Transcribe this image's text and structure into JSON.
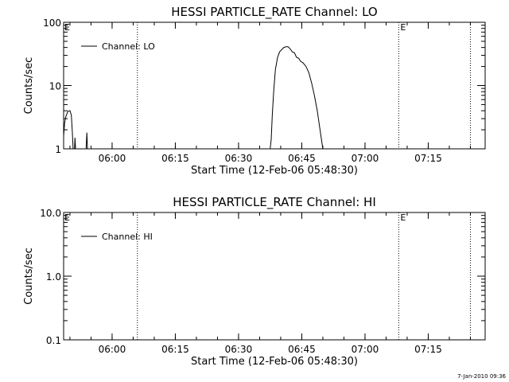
{
  "footer": {
    "timestamp": "7-Jan-2010 09:36"
  },
  "chart_data": [
    {
      "type": "line",
      "title": "HESSI PARTICLE_RATE Channel: LO",
      "xlabel": "Start Time (12-Feb-06 05:48:30)",
      "ylabel": "Counts/sec",
      "yscale": "log",
      "ylim": [
        1,
        100
      ],
      "xlim": [
        "05:48:30",
        "07:28:30"
      ],
      "xticks": [
        "06:00",
        "06:15",
        "06:30",
        "06:45",
        "07:00",
        "07:15"
      ],
      "yticks": [
        "1",
        "10",
        "100"
      ],
      "legend": "top-left",
      "grid": false,
      "markers": [
        {
          "time": "06:06:00",
          "label": ""
        },
        {
          "time": "07:08:00",
          "label": "E"
        },
        {
          "time": "07:25:00",
          "label": ""
        }
      ],
      "corner_label": "E",
      "series": [
        {
          "name": "Channel: LO",
          "segments": [
            [
              [
                "05:48:30",
                1.6
              ],
              [
                "05:48:45",
                2.6
              ],
              [
                "05:49:00",
                3.2
              ],
              [
                "05:49:30",
                3.9
              ],
              [
                "05:50:00",
                4.0
              ],
              [
                "05:50:20",
                3.4
              ],
              [
                "05:50:35",
                1.8
              ],
              [
                "05:50:45",
                1.0
              ]
            ],
            [
              [
                "05:51:05",
                1.0
              ],
              [
                "05:51:12",
                1.5
              ],
              [
                "05:51:20",
                1.0
              ]
            ],
            [
              [
                "05:53:50",
                1.0
              ],
              [
                "05:54:00",
                1.8
              ],
              [
                "05:54:10",
                1.0
              ]
            ],
            [
              [
                "06:37:30",
                1.0
              ],
              [
                "06:37:45",
                1.4
              ],
              [
                "06:38:00",
                3.5
              ],
              [
                "06:38:20",
                8.0
              ],
              [
                "06:38:45",
                18
              ],
              [
                "06:39:15",
                28
              ],
              [
                "06:39:45",
                34
              ],
              [
                "06:40:15",
                37
              ],
              [
                "06:40:45",
                40
              ],
              [
                "06:41:15",
                41
              ],
              [
                "06:41:45",
                41
              ],
              [
                "06:42:15",
                38
              ],
              [
                "06:42:45",
                34
              ],
              [
                "06:43:15",
                33
              ],
              [
                "06:43:45",
                28
              ],
              [
                "06:44:15",
                27
              ],
              [
                "06:44:45",
                24
              ],
              [
                "06:45:15",
                23
              ],
              [
                "06:46:00",
                20
              ],
              [
                "06:46:40",
                16
              ],
              [
                "06:47:20",
                11
              ],
              [
                "06:48:00",
                7
              ],
              [
                "06:48:40",
                4
              ],
              [
                "06:49:20",
                2
              ],
              [
                "06:50:00",
                1.0
              ]
            ]
          ]
        }
      ]
    },
    {
      "type": "line",
      "title": "HESSI PARTICLE_RATE Channel: HI",
      "xlabel": "Start Time (12-Feb-06 05:48:30)",
      "ylabel": "Counts/sec",
      "yscale": "log",
      "ylim": [
        0.1,
        10
      ],
      "xlim": [
        "05:48:30",
        "07:28:30"
      ],
      "xticks": [
        "06:00",
        "06:15",
        "06:30",
        "06:45",
        "07:00",
        "07:15"
      ],
      "yticks": [
        "0.1",
        "1.0",
        "10.0"
      ],
      "legend": "top-left",
      "grid": false,
      "markers": [
        {
          "time": "06:06:00",
          "label": ""
        },
        {
          "time": "07:08:00",
          "label": "E"
        },
        {
          "time": "07:25:00",
          "label": ""
        }
      ],
      "corner_label": "E",
      "series": [
        {
          "name": "Channel: HI",
          "segments": []
        }
      ]
    }
  ]
}
